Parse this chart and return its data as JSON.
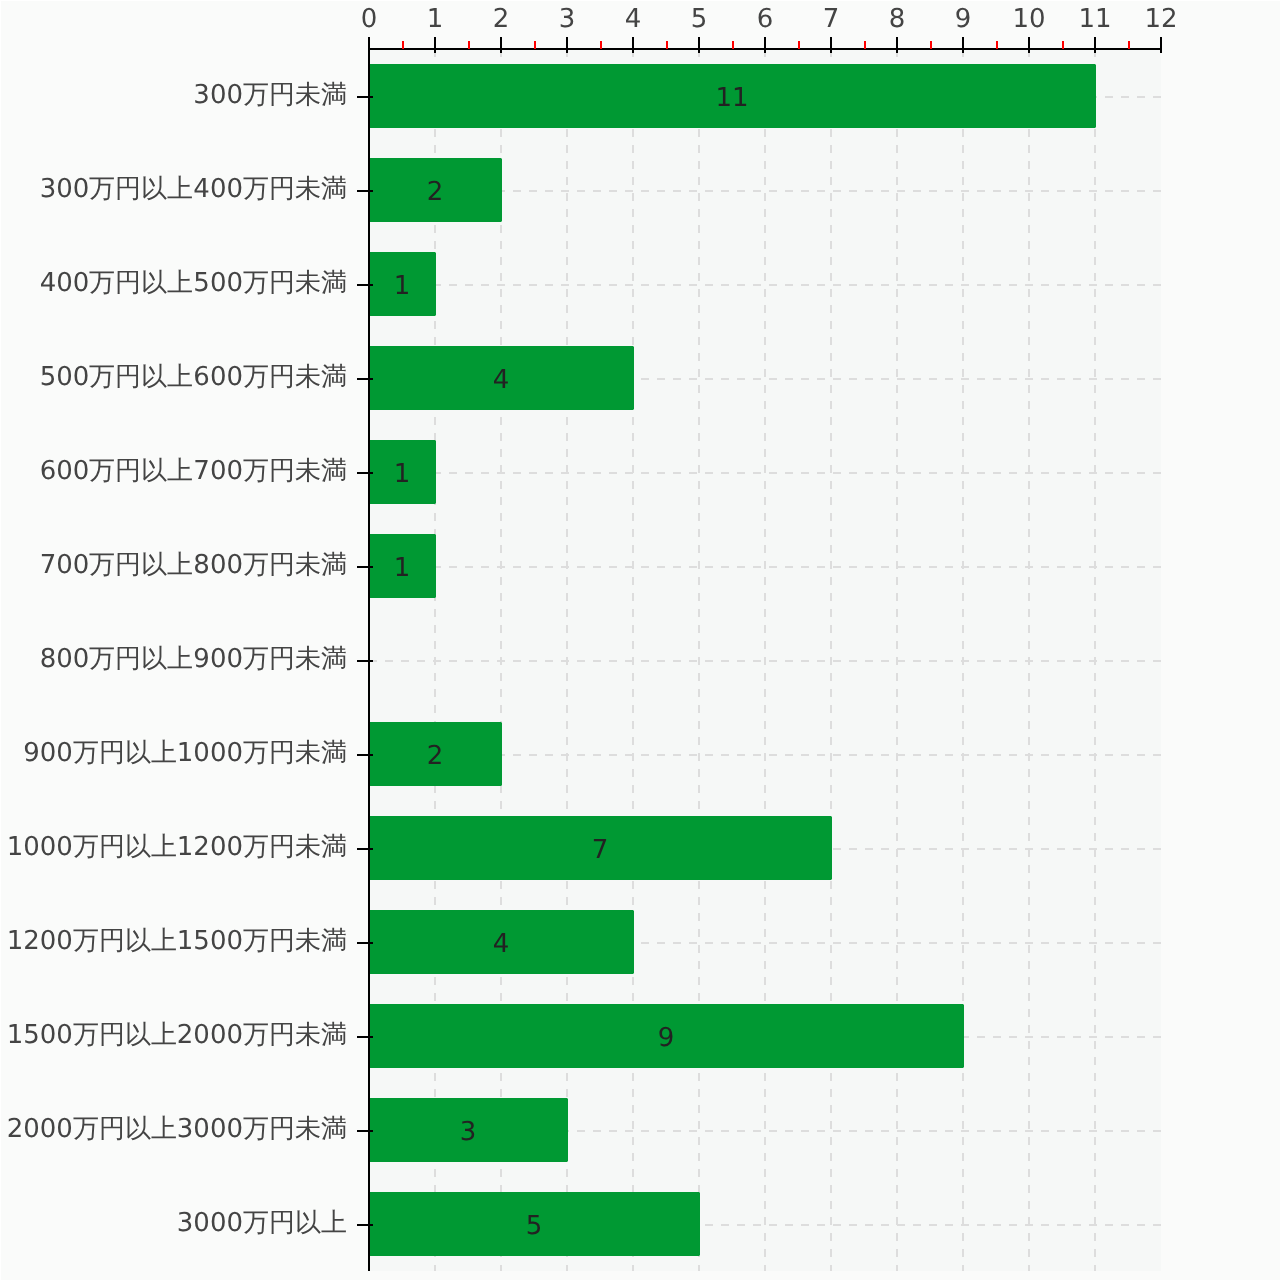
{
  "chart_data": {
    "type": "bar",
    "orientation": "horizontal",
    "categories": [
      "300万円未満",
      "300万円以上400万円未満",
      "400万円以上500万円未満",
      "500万円以上600万円未満",
      "600万円以上700万円未満",
      "700万円以上800万円未満",
      "800万円以上900万円未満",
      "900万円以上1000万円未満",
      "1000万円以上1200万円未満",
      "1200万円以上1500万円未満",
      "1500万円以上2000万円未満",
      "2000万円以上3000万円未満",
      "3000万円以上"
    ],
    "values": [
      11,
      2,
      1,
      4,
      1,
      1,
      0,
      2,
      7,
      4,
      9,
      3,
      5
    ],
    "value_labels": [
      "11",
      "2",
      "1",
      "4",
      "1",
      "1",
      null,
      "2",
      "7",
      "4",
      "9",
      "3",
      "5"
    ],
    "color": "#009933",
    "xlim": [
      0,
      12
    ],
    "xticks": [
      0,
      1,
      2,
      3,
      4,
      5,
      6,
      7,
      8,
      9,
      10,
      11,
      12
    ],
    "grid": true
  }
}
